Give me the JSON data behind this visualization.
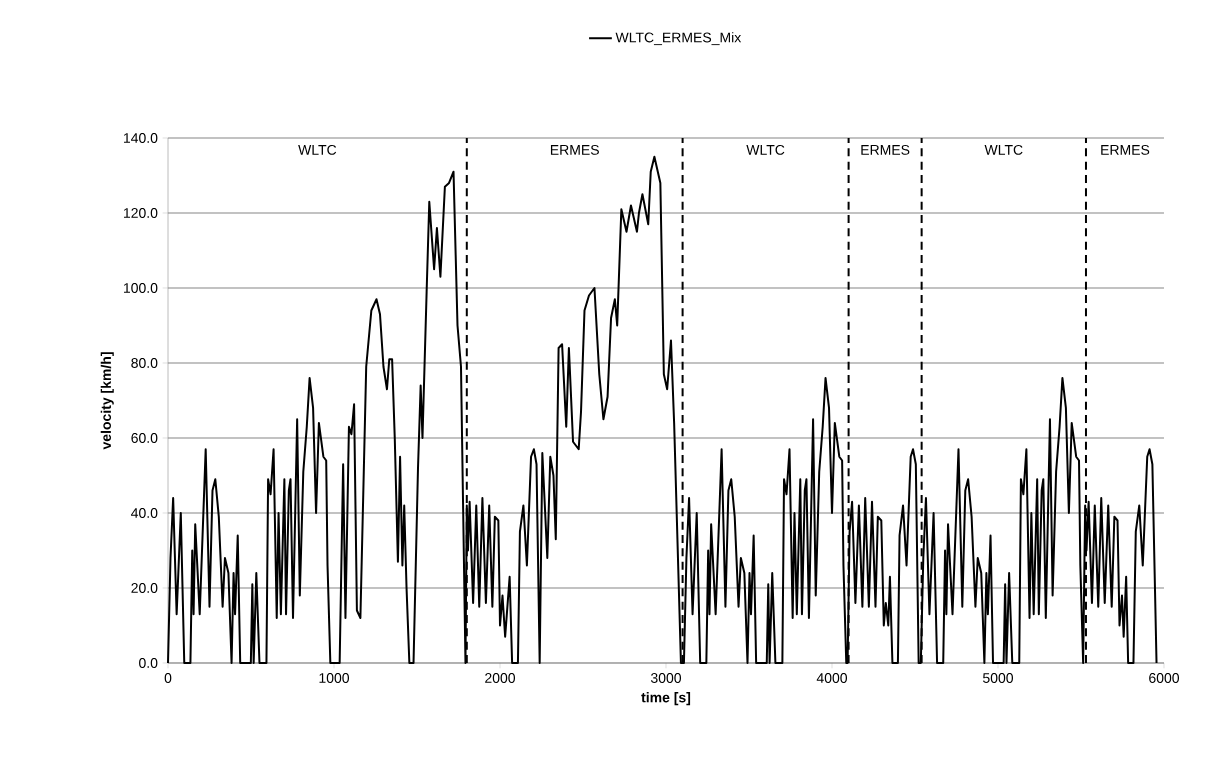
{
  "chart_data": {
    "type": "line",
    "xlabel": "time [s]",
    "ylabel": "velocity [km/h]",
    "x": [
      0,
      15,
      31,
      52,
      77,
      98,
      135,
      146,
      154,
      164,
      191,
      227,
      250,
      268,
      285,
      306,
      329,
      343,
      364,
      383,
      395,
      404,
      420,
      435,
      499,
      508,
      516,
      532,
      551,
      593,
      603,
      618,
      636,
      655,
      666,
      680,
      701,
      711,
      728,
      738,
      753,
      778,
      794,
      815,
      836,
      853,
      874,
      892,
      909,
      936,
      953,
      961,
      978,
      1034,
      1055,
      1069,
      1090,
      1105,
      1121,
      1138,
      1159,
      1194,
      1225,
      1256,
      1277,
      1298,
      1319,
      1333,
      1350,
      1366,
      1385,
      1398,
      1412,
      1423,
      1437,
      1454,
      1479,
      1506,
      1522,
      1533,
      1558,
      1574,
      1603,
      1620,
      1641,
      1668,
      1693,
      1720,
      1744,
      1765,
      1792,
      1800,
      1807,
      1817,
      1838,
      1857,
      1875,
      1894,
      1915,
      1935,
      1954,
      1969,
      1990,
      2000,
      2015,
      2031,
      2058,
      2073,
      2108,
      2120,
      2141,
      2162,
      2187,
      2204,
      2220,
      2239,
      2255,
      2285,
      2303,
      2322,
      2336,
      2353,
      2374,
      2399,
      2415,
      2440,
      2474,
      2488,
      2509,
      2536,
      2569,
      2598,
      2623,
      2648,
      2669,
      2692,
      2706,
      2731,
      2762,
      2789,
      2825,
      2837,
      2858,
      2893,
      2908,
      2930,
      2966,
      2987,
      3007,
      3030,
      3049,
      3090,
      3108,
      3123,
      3139,
      3160,
      3185,
      3206,
      3243,
      3254,
      3262,
      3272,
      3299,
      3335,
      3358,
      3376,
      3393,
      3414,
      3437,
      3451,
      3472,
      3491,
      3503,
      3512,
      3528,
      3543,
      3607,
      3616,
      3624,
      3640,
      3659,
      3701,
      3711,
      3726,
      3744,
      3763,
      3774,
      3788,
      3809,
      3819,
      3836,
      3846,
      3861,
      3886,
      3902,
      3923,
      3944,
      3961,
      3982,
      4000,
      4017,
      4044,
      4061,
      4069,
      4086,
      4094,
      4106,
      4121,
      4141,
      4162,
      4183,
      4200,
      4222,
      4241,
      4262,
      4276,
      4297,
      4312,
      4324,
      4339,
      4349,
      4364,
      4397,
      4407,
      4428,
      4449,
      4474,
      4488,
      4505,
      4522,
      4535,
      4550,
      4566,
      4587,
      4612,
      4633,
      4670,
      4681,
      4689,
      4699,
      4726,
      4762,
      4785,
      4803,
      4820,
      4841,
      4864,
      4878,
      4899,
      4918,
      4930,
      4939,
      4955,
      4970,
      5034,
      5043,
      5051,
      5067,
      5086,
      5128,
      5138,
      5153,
      5171,
      5190,
      5201,
      5215,
      5236,
      5246,
      5263,
      5273,
      5288,
      5313,
      5329,
      5350,
      5371,
      5388,
      5409,
      5427,
      5444,
      5471,
      5488,
      5496,
      5513,
      5525,
      5533,
      5546,
      5566,
      5583,
      5604,
      5622,
      5643,
      5664,
      5685,
      5701,
      5720,
      5732,
      5747,
      5757,
      5772,
      5784,
      5816,
      5830,
      5851,
      5872,
      5899,
      5913,
      5930,
      5955
    ],
    "series": [
      {
        "name": "WLTC_ERMES_Mix",
        "color": "#000000",
        "line_style": "solid",
        "values": [
          0,
          28,
          44,
          13,
          40,
          0,
          0,
          30,
          13,
          37,
          13,
          57,
          15,
          46,
          49,
          39,
          15,
          28,
          24,
          0,
          24,
          13,
          34,
          0,
          0,
          21,
          0,
          24,
          0,
          0,
          49,
          45,
          57,
          12,
          40,
          13,
          49,
          13,
          46,
          49,
          12,
          65,
          18,
          51,
          63,
          76,
          68,
          40,
          64,
          55,
          54,
          26,
          0,
          0,
          53,
          12,
          63,
          61,
          69,
          14,
          12,
          79,
          94,
          97,
          93,
          79,
          73,
          81,
          81,
          60,
          27,
          55,
          26,
          42,
          20,
          0,
          0,
          52,
          74,
          60,
          99,
          123,
          105,
          116,
          103,
          127,
          128,
          131,
          90,
          79,
          0,
          42,
          30,
          43,
          16,
          42,
          15,
          44,
          16,
          42,
          15,
          39,
          38,
          10,
          18,
          7,
          23,
          0,
          0,
          35,
          42,
          26,
          55,
          57,
          53,
          0,
          56,
          28,
          55,
          50,
          33,
          84,
          85,
          63,
          84,
          59,
          57,
          67,
          94,
          98,
          100,
          77,
          65,
          71,
          92,
          97,
          90,
          121,
          115,
          122,
          115,
          120,
          125,
          117,
          131,
          135,
          128,
          77,
          73,
          86,
          64,
          0,
          0,
          28,
          44,
          13,
          40,
          0,
          0,
          30,
          13,
          37,
          13,
          57,
          15,
          46,
          49,
          39,
          15,
          28,
          24,
          0,
          24,
          13,
          34,
          0,
          0,
          21,
          0,
          24,
          0,
          0,
          49,
          45,
          57,
          12,
          40,
          13,
          49,
          13,
          46,
          49,
          12,
          65,
          18,
          51,
          63,
          76,
          68,
          40,
          64,
          55,
          54,
          26,
          0,
          0,
          35,
          43,
          16,
          42,
          15,
          44,
          15,
          43,
          15,
          39,
          38,
          10,
          16,
          10,
          23,
          0,
          0,
          34,
          42,
          26,
          55,
          57,
          53,
          0,
          0,
          28,
          44,
          13,
          40,
          0,
          0,
          30,
          13,
          37,
          13,
          57,
          15,
          46,
          49,
          39,
          15,
          28,
          24,
          0,
          24,
          13,
          34,
          0,
          0,
          21,
          0,
          24,
          0,
          0,
          49,
          45,
          57,
          12,
          40,
          13,
          49,
          13,
          46,
          49,
          12,
          65,
          18,
          51,
          63,
          76,
          68,
          40,
          64,
          55,
          54,
          26,
          0,
          42,
          30,
          43,
          16,
          42,
          15,
          44,
          16,
          42,
          15,
          39,
          38,
          10,
          18,
          7,
          23,
          0,
          0,
          35,
          42,
          26,
          55,
          57,
          53,
          0
        ]
      }
    ],
    "xlim": [
      0,
      6000
    ],
    "xticks": [
      0,
      1000,
      2000,
      3000,
      4000,
      5000,
      6000
    ],
    "ylim": [
      0,
      140
    ],
    "yticks": [
      {
        "value": 0,
        "label": "0.0"
      },
      {
        "value": 20,
        "label": "20.0"
      },
      {
        "value": 40,
        "label": "40.0"
      },
      {
        "value": 60,
        "label": "60.0"
      },
      {
        "value": 80,
        "label": "80.0"
      },
      {
        "value": 100,
        "label": "100.0"
      },
      {
        "value": 120,
        "label": "120.0"
      },
      {
        "value": 140,
        "label": "140.0"
      }
    ],
    "grid": "y",
    "legend": "top",
    "ref_lines": [
      {
        "axis": "x",
        "value": 1800,
        "color": "#000000",
        "line_style": "dashed"
      },
      {
        "axis": "x",
        "value": 3100,
        "color": "#000000",
        "line_style": "dashed"
      },
      {
        "axis": "x",
        "value": 4100,
        "color": "#000000",
        "line_style": "dashed"
      },
      {
        "axis": "x",
        "value": 4540,
        "color": "#000000",
        "line_style": "dashed"
      },
      {
        "axis": "x",
        "value": 5530,
        "color": "#000000",
        "line_style": "dashed"
      }
    ],
    "annotations": [
      "WLTC",
      "ERMES",
      "WLTC",
      "ERMES",
      "WLTC",
      "ERMES"
    ]
  }
}
